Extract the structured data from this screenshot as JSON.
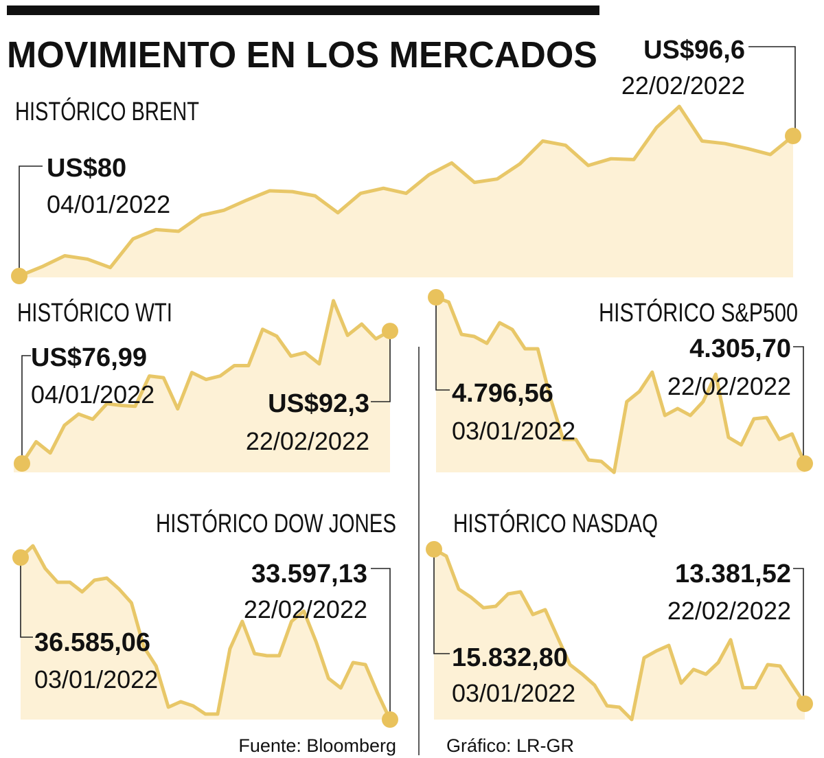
{
  "title": "MOVIMIENTO EN LOS MERCADOS",
  "source": "Fuente: Bloomberg",
  "credit": "Gráfico: LR-GR",
  "chart_data": [
    {
      "type": "area",
      "title": "HISTÓRICO BRENT",
      "color": "#e8c768",
      "values": [
        80,
        81.1,
        82.4,
        82.0,
        81.0,
        84.4,
        85.5,
        85.3,
        87.2,
        87.8,
        89.0,
        90.1,
        90.0,
        89.5,
        87.5,
        89.8,
        90.4,
        89.8,
        92.0,
        93.4,
        91.1,
        91.5,
        93.3,
        96.0,
        95.5,
        93.1,
        93.9,
        93.8,
        97.6,
        100.1,
        96.0,
        95.7,
        95.1,
        94.4,
        96.6
      ],
      "value_labels": [
        "US$80",
        null,
        null,
        null,
        null,
        null,
        null,
        null,
        null,
        null,
        null,
        null,
        null,
        null,
        null,
        null,
        null,
        null,
        null,
        null,
        null,
        null,
        null,
        null,
        null,
        null,
        null,
        null,
        null,
        null,
        null,
        null,
        null,
        null,
        "US$96,6"
      ],
      "date_labels": [
        "04/01/2022",
        null,
        null,
        null,
        null,
        null,
        null,
        null,
        null,
        null,
        null,
        null,
        null,
        null,
        null,
        null,
        null,
        null,
        null,
        null,
        null,
        null,
        null,
        null,
        null,
        null,
        null,
        null,
        null,
        null,
        null,
        null,
        null,
        null,
        "22/02/2022"
      ]
    },
    {
      "type": "area",
      "title": "HISTÓRICO WTI",
      "color": "#e8c768",
      "values": [
        76.99,
        79.5,
        78.2,
        81.4,
        82.7,
        82.1,
        83.9,
        83.7,
        83.6,
        87.1,
        86.9,
        83.3,
        87.5,
        86.7,
        87.1,
        88.3,
        88.3,
        92.5,
        91.7,
        89.4,
        89.8,
        88.5,
        95.8,
        91.8,
        93.1,
        91.4,
        92.3
      ],
      "value_labels": [
        "US$76,99",
        null,
        null,
        null,
        null,
        null,
        null,
        null,
        null,
        null,
        null,
        null,
        null,
        null,
        null,
        null,
        null,
        null,
        null,
        null,
        null,
        null,
        null,
        null,
        null,
        null,
        "US$92,3"
      ],
      "date_labels": [
        "04/01/2022",
        null,
        null,
        null,
        null,
        null,
        null,
        null,
        null,
        null,
        null,
        null,
        null,
        null,
        null,
        null,
        null,
        null,
        null,
        null,
        null,
        null,
        null,
        null,
        null,
        null,
        "22/02/2022"
      ]
    },
    {
      "type": "area",
      "title": "HISTÓRICO S&P500",
      "color": "#e8c768",
      "values": [
        4796.56,
        4782.4,
        4687.1,
        4681.0,
        4660.7,
        4721.5,
        4701.3,
        4644.5,
        4644.5,
        4498.4,
        4376.8,
        4376.8,
        4316.0,
        4311.9,
        4279.5,
        4488.3,
        4518.7,
        4575.5,
        4447.7,
        4468.0,
        4447.7,
        4488.3,
        4569.4,
        4382.9,
        4360.6,
        4437.6,
        4441.7,
        4376.8,
        4393.0,
        4305.7
      ],
      "value_labels": [
        "4.796,56",
        null,
        null,
        null,
        null,
        null,
        null,
        null,
        null,
        null,
        null,
        null,
        null,
        null,
        null,
        null,
        null,
        null,
        null,
        null,
        null,
        null,
        null,
        null,
        null,
        null,
        null,
        null,
        null,
        "4.305,70"
      ],
      "date_labels": [
        "03/01/2022",
        null,
        null,
        null,
        null,
        null,
        null,
        null,
        null,
        null,
        null,
        null,
        null,
        null,
        null,
        null,
        null,
        null,
        null,
        null,
        null,
        null,
        null,
        null,
        null,
        null,
        null,
        null,
        null,
        "22/02/2022"
      ]
    },
    {
      "type": "area",
      "title": "HISTÓRICO DOW JONES",
      "color": "#e8c768",
      "values": [
        36585.06,
        36800.3,
        36382.5,
        36129.3,
        36129.3,
        35952.1,
        36167.3,
        36205.3,
        36002.7,
        35749.5,
        34939.3,
        34584.8,
        33825.2,
        33926.5,
        33850.6,
        33698.7,
        33698.7,
        34901.3,
        35407.7,
        34812.7,
        34774.7,
        34774.7,
        35407.7,
        35597.7,
        35028.0,
        34357.0,
        34179.8,
        34648.2,
        34610.2,
        34078.4,
        33597.13
      ],
      "value_labels": [
        "36.585,06",
        null,
        null,
        null,
        null,
        null,
        null,
        null,
        null,
        null,
        null,
        null,
        null,
        null,
        null,
        null,
        null,
        null,
        null,
        null,
        null,
        null,
        null,
        null,
        null,
        null,
        null,
        null,
        null,
        null,
        "33.597,13"
      ],
      "date_labels": [
        "03/01/2022",
        null,
        null,
        null,
        null,
        null,
        null,
        null,
        null,
        null,
        null,
        null,
        null,
        null,
        null,
        null,
        null,
        null,
        null,
        null,
        null,
        null,
        null,
        null,
        null,
        null,
        null,
        null,
        null,
        null,
        "22/02/2022"
      ]
    },
    {
      "type": "area",
      "title": "HISTÓRICO NASDAQ",
      "color": "#e8c768",
      "values": [
        15832.8,
        15723.9,
        15200.9,
        15070.2,
        14904.8,
        14928.6,
        15124.7,
        15157.4,
        14797.9,
        14874.1,
        14438.4,
        14002.6,
        13850.1,
        13675.8,
        13349.0,
        13327.2,
        13131.1,
        14111.5,
        14220.5,
        14307.6,
        13708.5,
        13926.4,
        13850.1,
        14035.3,
        14397.2,
        13636.2,
        13636.2,
        14002.6,
        13980.8,
        13675.8,
        13381.52
      ],
      "value_labels": [
        "15.832,80",
        null,
        null,
        null,
        null,
        null,
        null,
        null,
        null,
        null,
        null,
        null,
        null,
        null,
        null,
        null,
        null,
        null,
        null,
        null,
        null,
        null,
        null,
        null,
        null,
        null,
        null,
        null,
        null,
        null,
        "13.381,52"
      ],
      "date_labels": [
        "03/01/2022",
        null,
        null,
        null,
        null,
        null,
        null,
        null,
        null,
        null,
        null,
        null,
        null,
        null,
        null,
        null,
        null,
        null,
        null,
        null,
        null,
        null,
        null,
        null,
        null,
        null,
        null,
        null,
        null,
        null,
        "22/02/2022"
      ]
    }
  ]
}
